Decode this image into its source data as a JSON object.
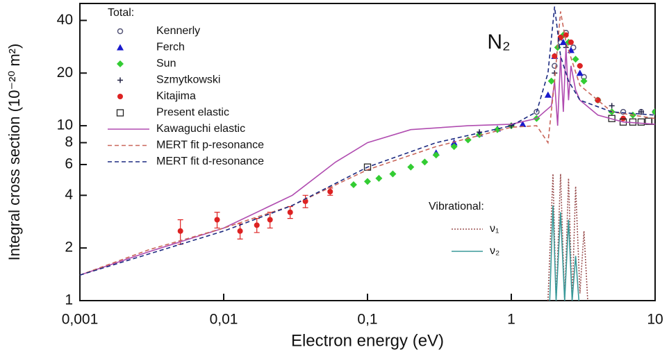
{
  "chart_data": {
    "type": "scatter",
    "title": "N₂",
    "x_label": "Electron energy (eV)",
    "y_label": "Integral cross section (10⁻²⁰ m²)",
    "xscale": "log",
    "yscale": "log",
    "xlim": [
      0.001,
      10
    ],
    "ylim": [
      1,
      50
    ],
    "xticks": [
      {
        "value": 0.001,
        "label": "0,001"
      },
      {
        "value": 0.01,
        "label": "0,01"
      },
      {
        "value": 0.1,
        "label": "0,1"
      },
      1,
      10
    ],
    "yticks": [
      1,
      2,
      4,
      6,
      8,
      10,
      20,
      40
    ],
    "legend_title": "Total:",
    "inset_legend_title": "Vibrational:",
    "series": [
      {
        "name": "Kennerly",
        "color": "#555577",
        "marker": "circle",
        "legend": "total",
        "x": [
          1.5,
          2.0,
          2.2,
          2.4,
          2.7,
          3.2,
          4,
          6,
          8,
          10
        ],
        "values": [
          12,
          22,
          30,
          34,
          28,
          19,
          14,
          12,
          12,
          12
        ]
      },
      {
        "name": "Ferch",
        "color": "#1a1acc",
        "marker": "triangle",
        "legend": "total",
        "x": [
          0.3,
          0.4,
          0.6,
          0.8,
          1.2,
          1.8,
          2.0,
          2.3,
          2.6,
          3
        ],
        "values": [
          7,
          8,
          9,
          9.6,
          10.2,
          15,
          25,
          30,
          27,
          20
        ]
      },
      {
        "name": "Sun",
        "color": "#33cc33",
        "marker": "diamond",
        "legend": "total",
        "x": [
          0.08,
          0.1,
          0.12,
          0.15,
          0.2,
          0.25,
          0.3,
          0.4,
          0.5,
          0.6,
          0.8,
          1,
          1.5,
          1.9,
          2.1,
          2.3,
          2.5,
          2.8,
          3.2,
          4,
          5,
          7,
          10
        ],
        "values": [
          4.6,
          4.8,
          5.0,
          5.3,
          5.8,
          6.2,
          6.8,
          7.6,
          8.3,
          8.9,
          9.5,
          10,
          11,
          18,
          28,
          33,
          30,
          24,
          18,
          14,
          12,
          11.5,
          12
        ]
      },
      {
        "name": "Szmytkowski",
        "color": "#222244",
        "marker": "plus",
        "legend": "total",
        "x": [
          0.6,
          1,
          2,
          2.4,
          3,
          5,
          8
        ],
        "values": [
          9.2,
          10,
          20,
          28,
          22,
          13,
          12
        ]
      },
      {
        "name": "Kitajima",
        "color": "#dd2222",
        "marker": "dot",
        "legend": "total",
        "x": [
          0.005,
          0.009,
          0.013,
          0.017,
          0.021,
          0.029,
          0.037,
          0.055,
          2.0,
          2.2,
          2.4,
          2.6,
          3,
          4,
          6
        ],
        "values": [
          2.5,
          2.9,
          2.5,
          2.7,
          2.9,
          3.2,
          3.7,
          4.2,
          25,
          32,
          33,
          30,
          22,
          14,
          11
        ],
        "errors": [
          0.4,
          0.3,
          0.25,
          0.25,
          0.3,
          0.25,
          0.3,
          0.2,
          null,
          null,
          null,
          null,
          null,
          null,
          null
        ]
      },
      {
        "name": "Present elastic",
        "color": "#222222",
        "marker": "square",
        "legend": "total",
        "x": [
          0.1,
          5,
          6,
          7,
          8,
          9,
          10
        ],
        "values": [
          5.8,
          11,
          10.5,
          10.5,
          10.5,
          10.6,
          10.6
        ]
      },
      {
        "name": "Kawaguchi elastic",
        "color": "#b04cb0",
        "line_style": "solid",
        "legend": "total",
        "x": [
          0.001,
          0.003,
          0.01,
          0.03,
          0.06,
          0.1,
          0.2,
          0.5,
          1,
          1.5,
          1.9,
          2.0,
          2.1,
          2.2,
          2.3,
          2.4,
          2.5,
          2.6,
          2.8,
          3,
          4,
          6,
          10
        ],
        "values": [
          1.4,
          1.9,
          2.6,
          4.0,
          6.2,
          8,
          9.5,
          10,
          10.2,
          11,
          13,
          18,
          10,
          25,
          12,
          28,
          14,
          22,
          16,
          14,
          11.5,
          10.5,
          10.2
        ]
      },
      {
        "name": "MERT fit p-resonance",
        "color": "#c9665a",
        "line_style": "dashed",
        "legend": "total",
        "x": [
          0.001,
          0.003,
          0.01,
          0.03,
          0.1,
          0.3,
          1,
          1.5,
          1.8,
          2.0,
          2.2,
          2.4,
          3,
          5,
          10
        ],
        "values": [
          1.4,
          1.95,
          2.6,
          3.5,
          5.6,
          7.6,
          9.8,
          10,
          8,
          18,
          45,
          30,
          17,
          12,
          11
        ]
      },
      {
        "name": "MERT fit d-resonance",
        "color": "#1c2a80",
        "line_style": "dashed",
        "legend": "total",
        "x": [
          0.001,
          0.01,
          0.03,
          0.1,
          0.3,
          1,
          1.5,
          1.8,
          2.0,
          2.2,
          2.5,
          3,
          5,
          10
        ],
        "values": [
          1.4,
          2.5,
          3.5,
          5.8,
          8,
          10,
          12,
          20,
          48,
          25,
          18,
          14,
          12,
          11.5
        ]
      },
      {
        "name": "ν₁",
        "color": "#9a5050",
        "line_style": "dotted",
        "legend": "vibrational",
        "x": [
          1.8,
          1.95,
          2.05,
          2.2,
          2.35,
          2.5,
          2.65,
          2.8,
          3.0,
          3.2,
          3.4
        ],
        "values": [
          1,
          5.3,
          1,
          5.3,
          1,
          5.0,
          1,
          4.5,
          1.1,
          2.5,
          1
        ]
      },
      {
        "name": "ν₂",
        "color": "#3a9a9a",
        "line_style": "solid",
        "legend": "vibrational",
        "x": [
          1.85,
          1.95,
          2.05,
          2.2,
          2.35,
          2.5,
          2.65,
          2.8,
          2.95
        ],
        "values": [
          1,
          3.5,
          1,
          3.2,
          1,
          2.9,
          1,
          1.8,
          1
        ]
      }
    ]
  }
}
